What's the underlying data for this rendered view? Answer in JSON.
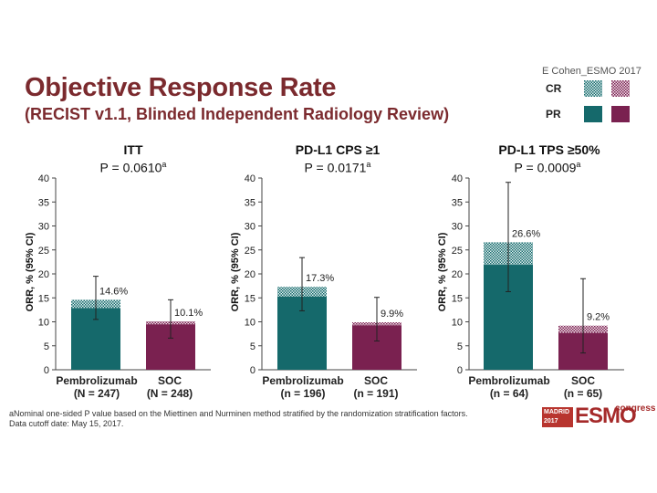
{
  "slide": {
    "title": "Objective Response Rate",
    "subtitle": "(RECIST v1.1, Blinded Independent Radiology Review)",
    "attribution": "E Cohen_ESMO 2017",
    "legend": {
      "cr": "CR",
      "pr": "PR"
    },
    "footnote_line1": "aNominal one-sided P value based on the Miettinen and Nurminen method stratified by the randomization stratification factors.",
    "footnote_line2": "Data cutoff date: May 15, 2017.",
    "logo": {
      "city": "MADRID",
      "year": "2017",
      "name": "ESMO",
      "word": "congress"
    }
  },
  "colors": {
    "pembro_pr": "#15696b",
    "pembro_cr": "#6fb3b4",
    "soc_pr": "#7a2150",
    "soc_cr": "#c27ba0",
    "title": "#7b2a2e"
  },
  "chart_data": [
    {
      "type": "bar",
      "stacked": true,
      "title": "ITT",
      "p_value": "P = 0.0610",
      "p_sup": "a",
      "ylabel": "ORR, % (95% CI)",
      "ylim": [
        0,
        40
      ],
      "yticks": [
        "0",
        "5",
        "10",
        "15",
        "20",
        "25",
        "30",
        "35",
        "40"
      ],
      "categories": [
        {
          "name": "Pembrolizumab",
          "n": "(N = 247)"
        },
        {
          "name": "SOC",
          "n": "(N = 248)"
        }
      ],
      "series": [
        {
          "name": "PR",
          "values": [
            12.9,
            9.5
          ]
        },
        {
          "name": "CR",
          "values": [
            1.7,
            0.6
          ]
        }
      ],
      "totals": [
        14.6,
        10.1
      ],
      "total_labels": [
        "14.6%",
        "10.1%"
      ],
      "ci": [
        [
          10.5,
          19.5
        ],
        [
          6.6,
          14.6
        ]
      ]
    },
    {
      "type": "bar",
      "stacked": true,
      "title": "PD-L1 CPS ≥1",
      "p_value": "P = 0.0171",
      "p_sup": "a",
      "ylabel": "ORR, % (95% CI)",
      "ylim": [
        0,
        40
      ],
      "yticks": [
        "0",
        "5",
        "10",
        "15",
        "20",
        "25",
        "30",
        "35",
        "40"
      ],
      "categories": [
        {
          "name": "Pembrolizumab",
          "n": "(n = 196)"
        },
        {
          "name": "SOC",
          "n": "(n = 191)"
        }
      ],
      "series": [
        {
          "name": "PR",
          "values": [
            15.3,
            9.3
          ]
        },
        {
          "name": "CR",
          "values": [
            2.0,
            0.6
          ]
        }
      ],
      "totals": [
        17.3,
        9.9
      ],
      "total_labels": [
        "17.3%",
        "9.9%"
      ],
      "ci": [
        [
          12.3,
          23.4
        ],
        [
          6.0,
          15.1
        ]
      ]
    },
    {
      "type": "bar",
      "stacked": true,
      "title": "PD-L1 TPS ≥50%",
      "p_value": "P = 0.0009",
      "p_sup": "a",
      "ylabel": "ORR, % (95% CI)",
      "ylim": [
        0,
        40
      ],
      "yticks": [
        "0",
        "5",
        "10",
        "15",
        "20",
        "25",
        "30",
        "35",
        "40"
      ],
      "categories": [
        {
          "name": "Pembrolizumab",
          "n": "(n = 64)"
        },
        {
          "name": "SOC",
          "n": "(n = 65)"
        }
      ],
      "series": [
        {
          "name": "PR",
          "values": [
            21.9,
            7.7
          ]
        },
        {
          "name": "CR",
          "values": [
            4.7,
            1.5
          ]
        }
      ],
      "totals": [
        26.6,
        9.2
      ],
      "total_labels": [
        "26.6%",
        "9.2%"
      ],
      "ci": [
        [
          16.3,
          39.1
        ],
        [
          3.5,
          19.0
        ]
      ]
    }
  ]
}
